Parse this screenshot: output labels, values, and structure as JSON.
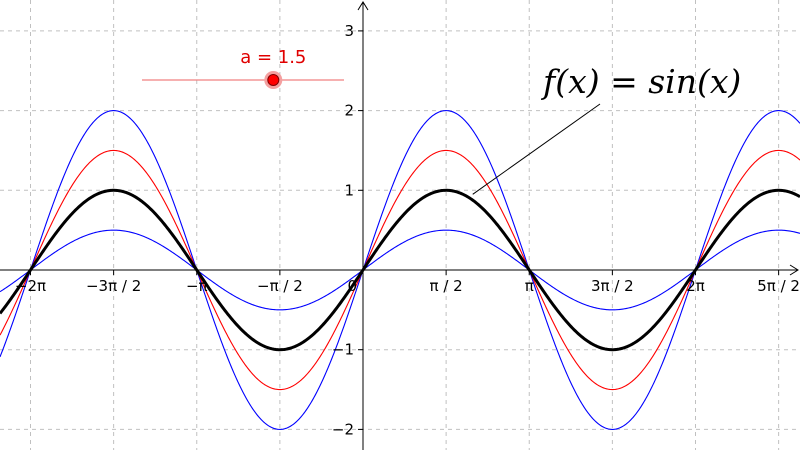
{
  "chart_data": {
    "type": "line",
    "title": "",
    "xlabel": "",
    "ylabel": "",
    "xlim_units_of_pi": [
      -2.2,
      2.6
    ],
    "ylim": [
      -2.2,
      3.35
    ],
    "grid": true,
    "x_ticks": [
      {
        "value_pi": -2,
        "label": "−2π"
      },
      {
        "value_pi": -1.5,
        "label": "−3π / 2"
      },
      {
        "value_pi": -1,
        "label": "−π"
      },
      {
        "value_pi": -0.5,
        "label": "−π / 2"
      },
      {
        "value_pi": 0,
        "label": "0"
      },
      {
        "value_pi": 0.5,
        "label": "π / 2"
      },
      {
        "value_pi": 1,
        "label": "π"
      },
      {
        "value_pi": 1.5,
        "label": "3π / 2"
      },
      {
        "value_pi": 2,
        "label": "2π"
      },
      {
        "value_pi": 2.5,
        "label": "5π / 2"
      }
    ],
    "y_ticks": [
      {
        "value": -2,
        "label": "−2"
      },
      {
        "value": -1,
        "label": "−1"
      },
      {
        "value": 1,
        "label": "1"
      },
      {
        "value": 2,
        "label": "2"
      },
      {
        "value": 3,
        "label": "3"
      }
    ],
    "series": [
      {
        "amplitude": 2,
        "color": "#0000ff",
        "stroke": "thin"
      },
      {
        "amplitude": 0.5,
        "color": "#0000ff",
        "stroke": "thin"
      },
      {
        "amplitude": 1.5,
        "color": "#ff0000",
        "stroke": "thin"
      },
      {
        "amplitude": 1,
        "color": "#000000",
        "stroke": "bold"
      }
    ],
    "annotation": {
      "text": "f(x) = sin(x)",
      "target_x_pi": 0.66,
      "target_y": 0.95
    }
  },
  "slider": {
    "label": "a = 1.5",
    "value": 1.5,
    "min": -5,
    "max": 5,
    "color": "#ff0000"
  }
}
